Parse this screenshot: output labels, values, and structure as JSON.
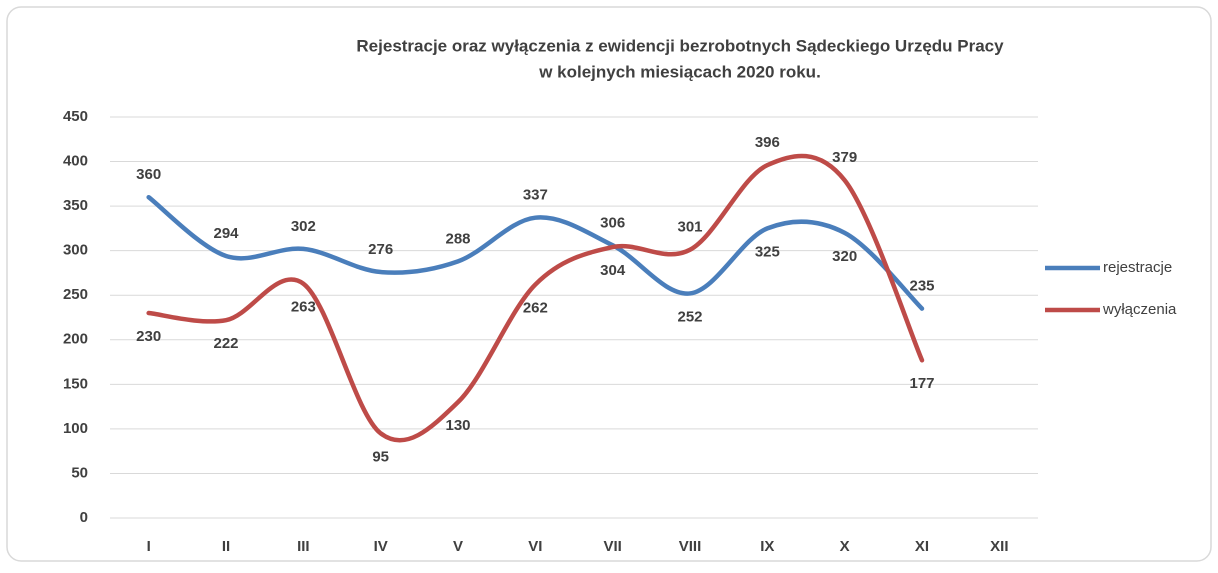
{
  "chart_data": {
    "type": "line",
    "title": [
      "Rejestracje oraz wyłączenia z ewidencji bezrobotnych Sądeckiego Urzędu Pracy",
      "w kolejnych miesiącach 2020 roku."
    ],
    "categories": [
      "I",
      "II",
      "III",
      "IV",
      "V",
      "VI",
      "VII",
      "VIII",
      "IX",
      "X",
      "XI",
      "XII"
    ],
    "series": [
      {
        "name": "rejestracje",
        "color": "#4a7ebb",
        "values": [
          360,
          294,
          302,
          276,
          288,
          337,
          306,
          252,
          325,
          320,
          235,
          null
        ]
      },
      {
        "name": "wyłączenia",
        "color": "#be4b48",
        "values": [
          230,
          222,
          263,
          95,
          130,
          262,
          304,
          301,
          396,
          379,
          177,
          null
        ]
      }
    ],
    "ylim": [
      0,
      450
    ],
    "yticks": [
      0,
      50,
      100,
      150,
      200,
      250,
      300,
      350,
      400,
      450
    ],
    "grid": true,
    "smooth": true,
    "legend": "right"
  }
}
